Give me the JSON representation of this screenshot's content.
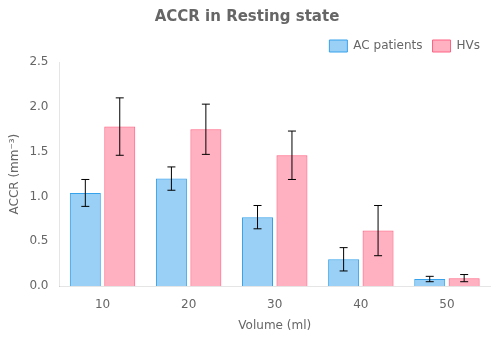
{
  "chart_data": {
    "type": "bar",
    "title": "ACCR in Resting state",
    "xlabel": "Volume (ml)",
    "ylabel": "ACCR (mm⁻³)",
    "categories": [
      "10",
      "20",
      "30",
      "40",
      "50"
    ],
    "series": [
      {
        "name": "AC patients",
        "values": [
          1.04,
          1.2,
          0.77,
          0.3,
          0.08
        ],
        "errors": [
          0.15,
          0.13,
          0.13,
          0.13,
          0.03
        ]
      },
      {
        "name": "HVs",
        "values": [
          1.78,
          1.75,
          1.46,
          0.62,
          0.09
        ],
        "errors": [
          0.32,
          0.28,
          0.27,
          0.28,
          0.04
        ]
      }
    ],
    "ylim": [
      0,
      2.5
    ],
    "yticks": [
      {
        "value": 0,
        "label": "0.0"
      },
      0.5,
      {
        "value": 1,
        "label": "1.0"
      },
      1.5,
      {
        "value": 2,
        "label": "2.0"
      },
      2.5
    ],
    "grid": false,
    "legend": "upper right"
  }
}
